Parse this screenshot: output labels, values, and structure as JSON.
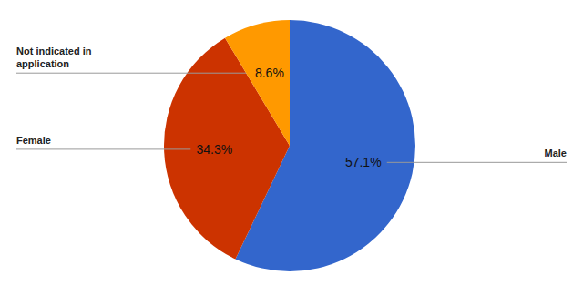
{
  "chart_data": {
    "type": "pie",
    "categories": [
      "Male",
      "Female",
      "Not indicated in application"
    ],
    "values": [
      57.1,
      34.3,
      8.6
    ],
    "value_labels": [
      "57.1%",
      "34.3%",
      "8.6%"
    ],
    "colors": [
      "#3366cc",
      "#cc3300",
      "#ff9900"
    ],
    "data_labels": true
  }
}
